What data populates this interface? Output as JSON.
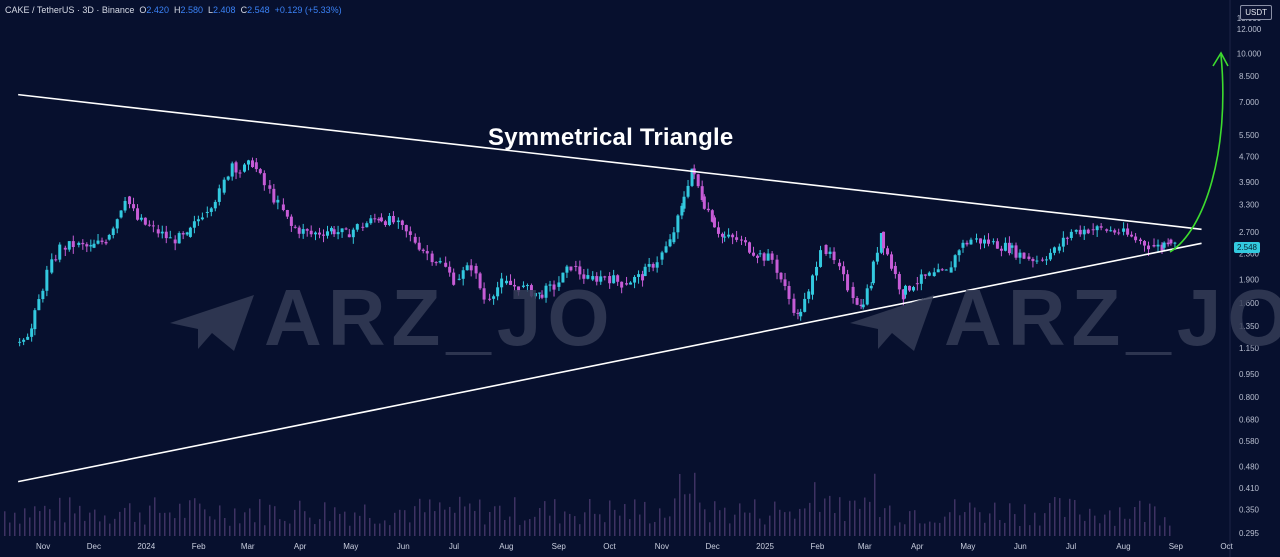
{
  "header": {
    "symbol": "CAKE / TetherUS · 3D · Binance",
    "o_label": "O",
    "o": "2.420",
    "h_label": "H",
    "h": "2.580",
    "l_label": "L",
    "l": "2.408",
    "c_label": "C",
    "c": "2.548",
    "change": "+0.129 (+5.33%)"
  },
  "currency": "USDT",
  "annotation_title": "Symmetrical Triangle",
  "watermark": "ARZ_JO",
  "colors": {
    "up": "#33c9df",
    "down": "#c65cd6",
    "volume_up": "#6b4f8f",
    "trendline": "#ffffff",
    "arrow": "#3ddc2e",
    "background": "#07102e"
  },
  "chart_data": {
    "type": "candlestick",
    "scale": "log",
    "title": "Symmetrical Triangle",
    "last_price": "2.548",
    "y_ticks": [
      "13.000",
      "12.000",
      "10.000",
      "8.500",
      "7.000",
      "5.500",
      "4.700",
      "3.900",
      "3.300",
      "2.700",
      "2.300",
      "1.900",
      "1.600",
      "1.350",
      "1.150",
      "0.950",
      "0.800",
      "0.680",
      "0.580",
      "0.480",
      "0.410",
      "0.350",
      "0.295"
    ],
    "x_ticks": [
      "Nov",
      "Dec",
      "2024",
      "Feb",
      "Mar",
      "Apr",
      "May",
      "Jun",
      "Jul",
      "Aug",
      "Sep",
      "Oct",
      "Nov",
      "Dec",
      "2025",
      "Feb",
      "Mar",
      "Apr",
      "May",
      "Jun",
      "Jul",
      "Aug",
      "Sep",
      "Oct"
    ],
    "series": [
      {
        "values": [
          [
            "2023-11-01",
            1.2
          ],
          [
            "2023-11-10",
            1.32
          ],
          [
            "2023-11-20",
            2.0
          ],
          [
            "2023-11-28",
            2.4
          ],
          [
            "2023-12-06",
            2.45
          ],
          [
            "2023-12-15",
            2.4
          ],
          [
            "2023-12-24",
            2.55
          ],
          [
            "2023-12-31",
            3.0
          ],
          [
            "2024-01-05",
            3.5
          ],
          [
            "2024-01-12",
            2.95
          ],
          [
            "2024-01-22",
            2.75
          ],
          [
            "2024-02-01",
            2.55
          ],
          [
            "2024-02-10",
            2.6
          ],
          [
            "2024-02-20",
            3.1
          ],
          [
            "2024-03-01",
            3.6
          ],
          [
            "2024-03-08",
            4.5
          ],
          [
            "2024-03-13",
            4.2
          ],
          [
            "2024-03-20",
            4.5
          ],
          [
            "2024-03-28",
            3.8
          ],
          [
            "2024-04-05",
            3.3
          ],
          [
            "2024-04-12",
            2.8
          ],
          [
            "2024-04-24",
            2.65
          ],
          [
            "2024-05-05",
            2.75
          ],
          [
            "2024-05-14",
            2.65
          ],
          [
            "2024-05-22",
            2.8
          ],
          [
            "2024-06-02",
            3.0
          ],
          [
            "2024-06-12",
            2.9
          ],
          [
            "2024-06-22",
            2.6
          ],
          [
            "2024-07-02",
            2.3
          ],
          [
            "2024-07-10",
            2.15
          ],
          [
            "2024-07-18",
            1.9
          ],
          [
            "2024-07-28",
            2.1
          ],
          [
            "2024-08-05",
            1.65
          ],
          [
            "2024-08-15",
            1.85
          ],
          [
            "2024-08-25",
            1.8
          ],
          [
            "2024-09-05",
            1.7
          ],
          [
            "2024-09-15",
            1.8
          ],
          [
            "2024-09-25",
            2.1
          ],
          [
            "2024-10-05",
            1.9
          ],
          [
            "2024-10-15",
            1.95
          ],
          [
            "2024-10-25",
            1.85
          ],
          [
            "2024-11-05",
            1.95
          ],
          [
            "2024-11-15",
            2.2
          ],
          [
            "2024-11-22",
            2.5
          ],
          [
            "2024-11-28",
            3.2
          ],
          [
            "2024-12-04",
            4.3
          ],
          [
            "2024-12-10",
            3.5
          ],
          [
            "2024-12-16",
            3.0
          ],
          [
            "2024-12-22",
            2.6
          ],
          [
            "2025-01-01",
            2.55
          ],
          [
            "2025-01-12",
            2.3
          ],
          [
            "2025-01-22",
            2.2
          ],
          [
            "2025-02-01",
            1.65
          ],
          [
            "2025-02-05",
            1.45
          ],
          [
            "2025-02-12",
            1.7
          ],
          [
            "2025-02-20",
            2.45
          ],
          [
            "2025-02-28",
            2.15
          ],
          [
            "2025-03-08",
            1.8
          ],
          [
            "2025-03-14",
            1.55
          ],
          [
            "2025-03-20",
            1.85
          ],
          [
            "2025-03-26",
            2.7
          ],
          [
            "2025-04-02",
            2.1
          ],
          [
            "2025-04-08",
            1.7
          ],
          [
            "2025-04-15",
            1.85
          ],
          [
            "2025-04-25",
            1.95
          ],
          [
            "2025-05-05",
            2.0
          ],
          [
            "2025-05-12",
            2.4
          ],
          [
            "2025-05-20",
            2.55
          ],
          [
            "2025-05-30",
            2.5
          ],
          [
            "2025-06-10",
            2.4
          ],
          [
            "2025-06-20",
            2.25
          ],
          [
            "2025-06-28",
            2.2
          ],
          [
            "2025-07-08",
            2.35
          ],
          [
            "2025-07-18",
            2.7
          ],
          [
            "2025-07-28",
            2.75
          ],
          [
            "2025-08-05",
            2.75
          ],
          [
            "2025-08-15",
            2.7
          ],
          [
            "2025-08-25",
            2.55
          ],
          [
            "2025-09-02",
            2.45
          ],
          [
            "2025-09-08",
            2.4
          ],
          [
            "2025-09-12",
            2.548
          ]
        ]
      }
    ],
    "trendlines": [
      {
        "name": "upper",
        "from": [
          "2023-11-01",
          7.4
        ],
        "to": [
          "2025-10-01",
          2.75
        ]
      },
      {
        "name": "lower",
        "from": [
          "2023-11-01",
          0.43
        ],
        "to": [
          "2025-10-01",
          2.48
        ]
      }
    ]
  }
}
